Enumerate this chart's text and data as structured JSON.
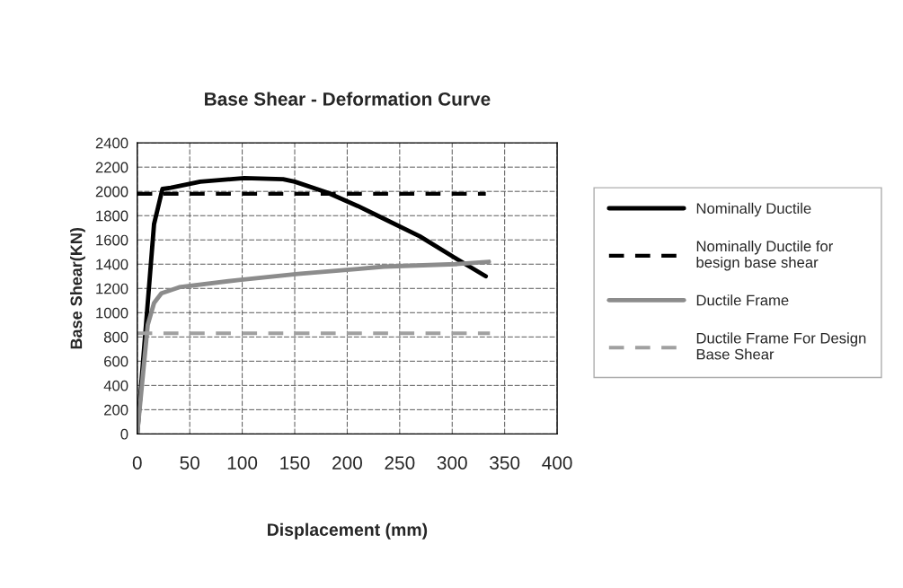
{
  "chart_data": {
    "type": "line",
    "title": "Base Shear - Deformation Curve",
    "xlabel": "Displacement (mm)",
    "ylabel": "Base Shear(KN)",
    "xlim": [
      0,
      400
    ],
    "xticks": [
      0,
      50,
      100,
      150,
      200,
      250,
      300,
      350,
      400
    ],
    "ylim": [
      0,
      2400
    ],
    "yticks": [
      0,
      200,
      400,
      600,
      800,
      1000,
      1200,
      1400,
      1600,
      1800,
      2000,
      2200,
      2400
    ],
    "grid": true,
    "legend": "right",
    "marker": "none",
    "series": [
      {
        "name": "Nominally Ductile",
        "color": "#000000",
        "line_style": "solid",
        "x": [
          0,
          16,
          24,
          32,
          60,
          102,
          139,
          150,
          181,
          210,
          229,
          269,
          303,
          332
        ],
        "values": [
          0,
          1730,
          2020,
          2030,
          2080,
          2110,
          2100,
          2080,
          1990,
          1880,
          1800,
          1630,
          1450,
          1300
        ]
      },
      {
        "name": "Nominally Ductile for besign base shear",
        "color": "#000000",
        "line_style": "dashed",
        "x": [
          0,
          332
        ],
        "values": [
          1980,
          1980
        ]
      },
      {
        "name": "Ductile Frame",
        "color": "#8c8c8c",
        "line_style": "solid",
        "x": [
          0,
          10,
          16,
          23,
          40,
          97,
          153,
          210,
          235,
          303,
          335
        ],
        "values": [
          0,
          900,
          1080,
          1160,
          1210,
          1270,
          1320,
          1360,
          1380,
          1400,
          1420
        ]
      },
      {
        "name": "Ductile Frame For Design Base Shear",
        "color": "#a0a0a0",
        "line_style": "dashed",
        "x": [
          0,
          336
        ],
        "values": [
          830,
          830
        ]
      }
    ]
  }
}
